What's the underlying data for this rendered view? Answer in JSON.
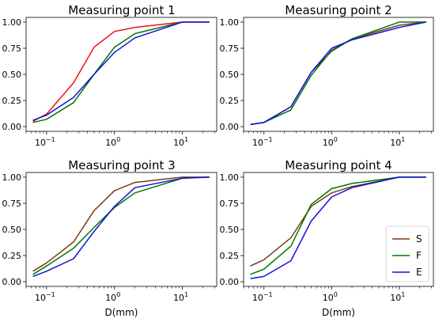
{
  "chart_data": [
    {
      "type": "line",
      "title": "Measuring point 1",
      "xscale": "log",
      "ylim": [
        0,
        1
      ],
      "ytick_labels": [
        "0.00",
        "0.25",
        "0.50",
        "0.75",
        "1.00"
      ],
      "xtick_labels": [
        "10^-1",
        "10^0",
        "10^1"
      ],
      "xlabel": "",
      "x": [
        0.063,
        0.1,
        0.25,
        0.5,
        1,
        2,
        10,
        25
      ],
      "series": [
        {
          "key": "S",
          "color": "#ee1111",
          "values": [
            0.05,
            0.12,
            0.42,
            0.76,
            0.91,
            0.95,
            1.0,
            1.0
          ]
        },
        {
          "key": "F",
          "color": "#007700",
          "values": [
            0.04,
            0.07,
            0.23,
            0.5,
            0.76,
            0.89,
            1.0,
            1.0
          ]
        },
        {
          "key": "E",
          "color": "#1111dd",
          "values": [
            0.06,
            0.11,
            0.28,
            0.5,
            0.71,
            0.85,
            1.0,
            1.0
          ]
        }
      ]
    },
    {
      "type": "line",
      "title": "Measuring point 2",
      "xscale": "log",
      "ylim": [
        0,
        1
      ],
      "ytick_labels": [
        "0.00",
        "0.25",
        "0.50",
        "0.75",
        "1.00"
      ],
      "xtick_labels": [
        "10^-1",
        "10^0",
        "10^1"
      ],
      "xlabel": "",
      "x": [
        0.063,
        0.1,
        0.25,
        0.5,
        1,
        2,
        10,
        25
      ],
      "series": [
        {
          "key": "S",
          "color": "#7a3b14",
          "values": [
            0.02,
            0.04,
            0.19,
            0.52,
            0.72,
            0.84,
            0.97,
            1.0
          ]
        },
        {
          "key": "F",
          "color": "#007700",
          "values": [
            0.02,
            0.04,
            0.16,
            0.49,
            0.73,
            0.84,
            1.0,
            1.0
          ]
        },
        {
          "key": "E",
          "color": "#1111dd",
          "values": [
            0.02,
            0.04,
            0.19,
            0.52,
            0.75,
            0.83,
            0.95,
            1.0
          ]
        }
      ]
    },
    {
      "type": "line",
      "title": "Measuring point 3",
      "xscale": "log",
      "ylim": [
        0,
        1
      ],
      "ytick_labels": [
        "0.00",
        "0.25",
        "0.50",
        "0.75",
        "1.00"
      ],
      "xtick_labels": [
        "10^-1",
        "10^0",
        "10^1"
      ],
      "xlabel": "D(mm)",
      "x": [
        0.063,
        0.1,
        0.25,
        0.5,
        1,
        2,
        10,
        25
      ],
      "series": [
        {
          "key": "S",
          "color": "#7a3b14",
          "values": [
            0.1,
            0.18,
            0.38,
            0.68,
            0.87,
            0.95,
            1.0,
            1.0
          ]
        },
        {
          "key": "F",
          "color": "#007700",
          "values": [
            0.07,
            0.15,
            0.32,
            0.52,
            0.71,
            0.85,
            0.99,
            1.0
          ]
        },
        {
          "key": "E",
          "color": "#1111dd",
          "values": [
            0.05,
            0.1,
            0.22,
            0.48,
            0.72,
            0.9,
            0.99,
            1.0
          ]
        }
      ]
    },
    {
      "type": "line",
      "title": "Measuring point 4",
      "xscale": "log",
      "ylim": [
        0,
        1
      ],
      "ytick_labels": [
        "0.00",
        "0.25",
        "0.50",
        "0.75",
        "1.00"
      ],
      "xtick_labels": [
        "10^-1",
        "10^0",
        "10^1"
      ],
      "xlabel": "D(mm)",
      "x": [
        0.063,
        0.1,
        0.25,
        0.5,
        1,
        2,
        10,
        25
      ],
      "series": [
        {
          "key": "S",
          "color": "#7a3b14",
          "values": [
            0.15,
            0.21,
            0.42,
            0.72,
            0.85,
            0.91,
            1.0,
            1.0
          ]
        },
        {
          "key": "F",
          "color": "#007700",
          "values": [
            0.07,
            0.12,
            0.34,
            0.74,
            0.89,
            0.94,
            1.0,
            1.0
          ]
        },
        {
          "key": "E",
          "color": "#1111dd",
          "values": [
            0.03,
            0.05,
            0.2,
            0.58,
            0.81,
            0.9,
            1.0,
            1.0
          ]
        }
      ],
      "legend": {
        "placement": "lower-right",
        "entries": [
          {
            "label": "S",
            "color": "#7a3b14"
          },
          {
            "label": "F",
            "color": "#007700"
          },
          {
            "label": "E",
            "color": "#1111dd"
          }
        ]
      }
    }
  ]
}
